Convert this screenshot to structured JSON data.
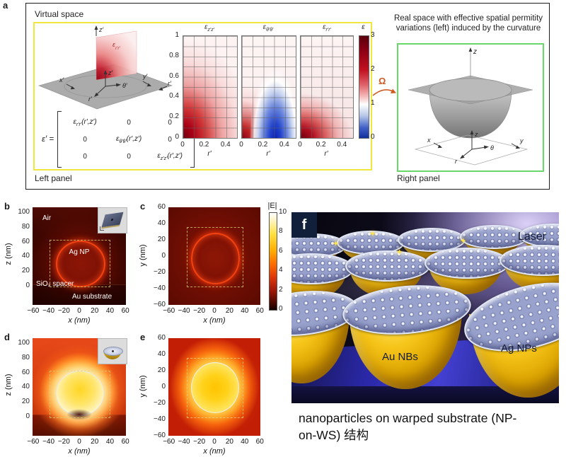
{
  "panel_a": {
    "label": "a",
    "virtual_space_title": "Virtual space",
    "left_panel_label": "Left panel",
    "right_panel_label": "Right panel",
    "virtual_diagram": {
      "z_top": "z′",
      "plane_eps_base": "ε",
      "plane_eps_sub": "r′r′",
      "x": "x′",
      "y": "y′",
      "z_center": "z′",
      "theta": "θ′",
      "r_center": "r′",
      "r_far": "r′"
    },
    "matrix": {
      "lhs": "ε′ =",
      "zero": "0",
      "c11_base": "ε",
      "c11_sub": "r′r′",
      "c11_args": "(r′,z′)",
      "c22_base": "ε",
      "c22_sub": "θ′θ′",
      "c22_args": "(r′,z′)",
      "c33_base": "ε",
      "c33_sub": "z′z′",
      "c33_args": "(r′,z′)"
    },
    "heatmaps": {
      "titles": [
        {
          "base": "ε",
          "sub": "z′z′"
        },
        {
          "base": "ε",
          "sub": "θ′θ′"
        },
        {
          "base": "ε",
          "sub": "r′r′"
        }
      ],
      "y_ticks": [
        "1",
        "0.8",
        "0.6",
        "0.4",
        "0.2",
        "0"
      ],
      "x_ticks": [
        "0",
        "0.2",
        "0.4"
      ],
      "x_label": "r′"
    },
    "colorbar": {
      "label": "ε",
      "ticks": [
        "3",
        "2",
        "1",
        "0"
      ]
    },
    "omega_label": "Ω",
    "real_space_caption_lines": [
      "Real space with effective spatial permitity",
      "variations (left) induced by the curvature"
    ],
    "real_diagram": {
      "z_top": "z",
      "x": "x",
      "y": "y",
      "z_center": "z",
      "theta": "θ",
      "r": "r"
    }
  },
  "panel_b": {
    "label": "b",
    "y_label": "z (nm)",
    "y_ticks": [
      "100",
      "80",
      "60",
      "40",
      "20",
      "0"
    ],
    "x_ticks": [
      "−60",
      "−40",
      "−20",
      "0",
      "20",
      "40",
      "60"
    ],
    "x_label": "x (nm)",
    "regions": {
      "air": "Air",
      "particle": "Ag NP",
      "spacer": "SiO₂ spacer",
      "substrate": "Au substrate"
    }
  },
  "panel_c": {
    "label": "c",
    "y_label": "y (nm)",
    "y_ticks": [
      "60",
      "40",
      "20",
      "0",
      "−20",
      "−40",
      "−60"
    ],
    "x_ticks": [
      "−60",
      "−40",
      "−20",
      "0",
      "20",
      "40",
      "60"
    ],
    "x_label": "x (nm)",
    "colorbar": {
      "label": "|E|",
      "ticks": [
        "10",
        "8",
        "6",
        "4",
        "2",
        "0"
      ]
    }
  },
  "panel_d": {
    "label": "d",
    "y_label": "z (nm)",
    "y_ticks": [
      "100",
      "80",
      "60",
      "40",
      "20",
      "0"
    ],
    "x_ticks": [
      "−60",
      "−40",
      "−20",
      "0",
      "20",
      "40",
      "60"
    ],
    "x_label": "x (nm)"
  },
  "panel_e": {
    "label": "e",
    "y_label": "y (nm)",
    "y_ticks": [
      "60",
      "40",
      "20",
      "0",
      "−20",
      "−40",
      "−60"
    ],
    "x_ticks": [
      "−60",
      "−40",
      "−20",
      "0",
      "20",
      "40",
      "60"
    ],
    "x_label": "x (nm)"
  },
  "panel_f": {
    "label": "f",
    "laser_label": "Laser",
    "au_label": "Au NBs",
    "ag_label": "Ag NPs"
  },
  "caption": {
    "lines": [
      "nanoparticles on warped substrate (NP-",
      "on-WS) 结构"
    ]
  },
  "colors": {
    "yellow_box_border": "#f0e73c",
    "green_box_border": "#67d967",
    "omega_arrow": "#cf5b22",
    "panel_f_badge_bg": "#121f3a"
  },
  "chart_data": [
    {
      "type": "heatmap",
      "panel": "a1",
      "title": "ε_z′z′",
      "xlabel": "r′",
      "xlim": [
        0,
        0.5
      ],
      "ylim": [
        0,
        1
      ],
      "x_ticks": [
        0,
        0.2,
        0.4
      ],
      "y_ticks": [
        0,
        0.2,
        0.4,
        0.6,
        0.8,
        1
      ],
      "colorbar_label": "ε",
      "colorbar_range": [
        0,
        3
      ],
      "grid": true,
      "description": "ε≈3 (dark red) near r′=0,z′=0 decaying diagonally to ε≈1 (white) at large r′,z′"
    },
    {
      "type": "heatmap",
      "panel": "a2",
      "title": "ε_θ′θ′",
      "xlabel": "r′",
      "xlim": [
        0,
        0.5
      ],
      "ylim": [
        0,
        1
      ],
      "x_ticks": [
        0,
        0.2,
        0.4
      ],
      "y_ticks": [
        0,
        0.2,
        0.4,
        0.6,
        0.8,
        1
      ],
      "colorbar_label": "ε",
      "colorbar_range": [
        0,
        3
      ],
      "grid": true,
      "description": "red lobe (ε>1) near r′=0; blue lobe (ε<1, ≈0) centred near r′≈0.3 at small z′"
    },
    {
      "type": "heatmap",
      "panel": "a3",
      "title": "ε_r′r′",
      "xlabel": "r′",
      "xlim": [
        0,
        0.5
      ],
      "ylim": [
        0,
        1
      ],
      "x_ticks": [
        0,
        0.2,
        0.4
      ],
      "y_ticks": [
        0,
        0.2,
        0.4,
        0.6,
        0.8,
        1
      ],
      "colorbar_label": "ε",
      "colorbar_range": [
        0,
        3
      ],
      "grid": true,
      "description": "weak red (ε slightly >1) everywhere with strong red spot near origin"
    },
    {
      "type": "heatmap",
      "panel": "b",
      "title": "|E| xz-plane, Ag NP on flat substrate",
      "xlabel": "x (nm)",
      "ylabel": "z (nm)",
      "xlim": [
        -60,
        60
      ],
      "ylim": [
        -28,
        103
      ],
      "colorbar_label": "|E|",
      "colorbar_range": [
        0,
        10
      ],
      "description": "weak ring enhancement |E|≈2–3 on NP surface (circle z 0–60 nm), hot colormap"
    },
    {
      "type": "heatmap",
      "panel": "c",
      "title": "|E| xy-plane, Ag NP on flat substrate",
      "xlabel": "x (nm)",
      "ylabel": "y (nm)",
      "xlim": [
        -60,
        60
      ],
      "ylim": [
        -60,
        60
      ],
      "colorbar_label": "|E|",
      "colorbar_range": [
        0,
        10
      ],
      "description": "faint circular ring |E|≈2–3 at r≈30 nm"
    },
    {
      "type": "heatmap",
      "panel": "d",
      "title": "|E| xz-plane, Ag NP in warped substrate",
      "xlabel": "x (nm)",
      "ylabel": "z (nm)",
      "xlim": [
        -60,
        60
      ],
      "ylim": [
        -28,
        103
      ],
      "colorbar_label": "|E|",
      "colorbar_range": [
        0,
        10
      ],
      "description": "strong enhancement |E|≈8–10 (white/yellow halo) around NP"
    },
    {
      "type": "heatmap",
      "panel": "e",
      "title": "|E| xy-plane, Ag NP in warped substrate",
      "xlabel": "x (nm)",
      "ylabel": "y (nm)",
      "xlim": [
        -60,
        60
      ],
      "ylim": [
        -60,
        60
      ],
      "colorbar_label": "|E|",
      "colorbar_range": [
        0,
        10
      ],
      "description": "bright yellow disc |E|≈6–8 over the NP cross-section"
    }
  ]
}
